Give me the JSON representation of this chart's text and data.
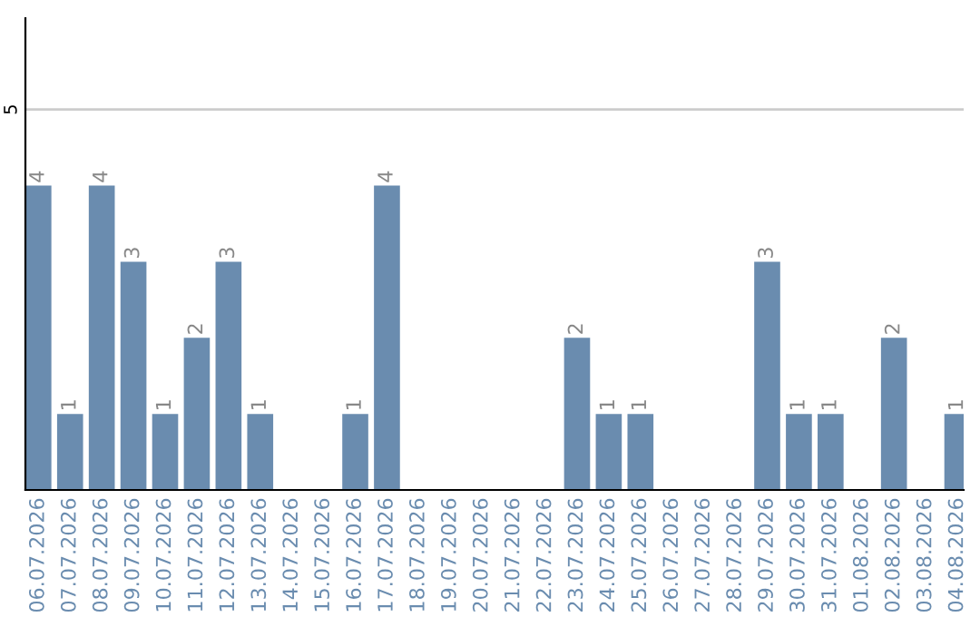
{
  "chart_data": {
    "type": "bar",
    "categories": [
      "06.07.2026",
      "07.07.2026",
      "08.07.2026",
      "09.07.2026",
      "10.07.2026",
      "11.07.2026",
      "12.07.2026",
      "13.07.2026",
      "14.07.2026",
      "15.07.2026",
      "16.07.2026",
      "17.07.2026",
      "18.07.2026",
      "19.07.2026",
      "20.07.2026",
      "21.07.2026",
      "22.07.2026",
      "23.07.2026",
      "24.07.2026",
      "25.07.2026",
      "26.07.2026",
      "27.07.2026",
      "28.07.2026",
      "29.07.2026",
      "30.07.2026",
      "31.07.2026",
      "01.08.2026",
      "02.08.2026",
      "03.08.2026",
      "04.08.2026"
    ],
    "values": [
      4,
      1,
      4,
      3,
      1,
      2,
      3,
      1,
      0,
      0,
      1,
      4,
      0,
      0,
      0,
      0,
      0,
      2,
      1,
      1,
      0,
      0,
      0,
      3,
      1,
      1,
      0,
      2,
      0,
      1
    ],
    "value_labels": [
      "4",
      "1",
      "4",
      "3",
      "1",
      "2",
      "3",
      "1",
      null,
      null,
      "1",
      "4",
      null,
      null,
      null,
      null,
      null,
      "2",
      "1",
      "1",
      null,
      null,
      null,
      "3",
      "1",
      "1",
      null,
      "2",
      null,
      "1"
    ],
    "color": "#6a8caf",
    "ylim": [
      0,
      6.2
    ],
    "yticks": [
      5
    ],
    "grid": "y",
    "legend": false
  }
}
